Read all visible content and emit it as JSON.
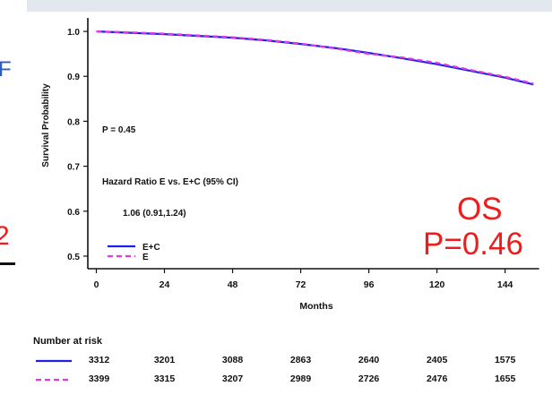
{
  "left_fragment": {
    "text_top": "F",
    "text_bottom": "2"
  },
  "annotation": {
    "line1": "OS",
    "line2": "P=0.46"
  },
  "colors": {
    "ec": "#1f1fe8",
    "e": "#e03ae0",
    "annotation": "#ee1c1c",
    "axis": "#111111"
  },
  "chart_data": {
    "type": "line",
    "xlabel": "Months",
    "ylabel": "Survival Probability",
    "xticks": [
      0,
      24,
      48,
      72,
      96,
      120,
      144
    ],
    "yticks": [
      "0.5",
      "0.6",
      "0.7",
      "0.8",
      "0.9",
      "1.0"
    ],
    "xlim": [
      -3,
      158
    ],
    "ylim": [
      0.48,
      1.03
    ],
    "p_text": "P = 0.45",
    "hr_title": "Hazard Ratio E vs. E+C (95% CI)",
    "hr_value": "1.06 (0.91,1.24)",
    "series": [
      {
        "name": "E+C",
        "color": "#1f1fe8",
        "dash": "",
        "x": [
          0,
          12,
          24,
          36,
          48,
          60,
          72,
          84,
          96,
          108,
          120,
          132,
          144,
          154
        ],
        "y": [
          1.0,
          0.997,
          0.994,
          0.99,
          0.986,
          0.98,
          0.972,
          0.963,
          0.952,
          0.94,
          0.927,
          0.912,
          0.897,
          0.882
        ]
      },
      {
        "name": "E",
        "color": "#e03ae0",
        "dash": "6,4",
        "x": [
          0,
          12,
          24,
          36,
          48,
          60,
          72,
          84,
          96,
          108,
          120,
          132,
          144,
          154
        ],
        "y": [
          1.0,
          0.998,
          0.995,
          0.991,
          0.987,
          0.981,
          0.973,
          0.962,
          0.95,
          0.942,
          0.93,
          0.914,
          0.899,
          0.884
        ]
      }
    ]
  },
  "risk_table": {
    "title": "Number at risk",
    "rows": [
      {
        "name": "E+C",
        "color": "#1f1fe8",
        "dash": "",
        "values": [
          "3312",
          "3201",
          "3088",
          "2863",
          "2640",
          "2405",
          "1575"
        ]
      },
      {
        "name": "E",
        "color": "#e03ae0",
        "dash": "6,4",
        "values": [
          "3399",
          "3315",
          "3207",
          "2989",
          "2726",
          "2476",
          "1655"
        ]
      }
    ]
  }
}
